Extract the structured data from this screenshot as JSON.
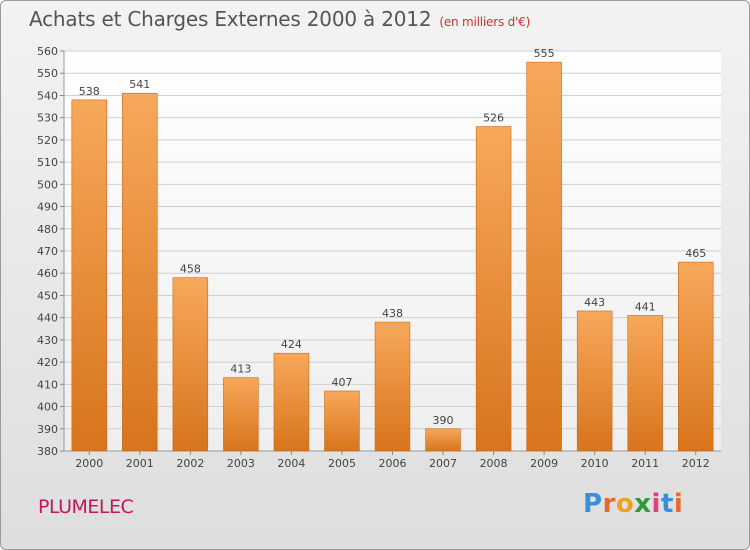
{
  "title": "Achats et Charges Externes 2000 à 2012",
  "unit": "(en milliers d'€)",
  "commune": "PLUMELEC",
  "logo": "Proxiti",
  "colors": {
    "bar_light": "#f7a85a",
    "bar_dark": "#d8741c",
    "commune": "#c2185b"
  },
  "chart_data": {
    "type": "bar",
    "title": "Achats et Charges Externes 2000 à 2012",
    "xlabel": "",
    "ylabel": "en milliers d'€",
    "categories": [
      "2000",
      "2001",
      "2002",
      "2003",
      "2004",
      "2005",
      "2006",
      "2007",
      "2008",
      "2009",
      "2010",
      "2011",
      "2012"
    ],
    "values": [
      538,
      541,
      458,
      413,
      424,
      407,
      438,
      390,
      526,
      555,
      443,
      441,
      465
    ],
    "ylim": [
      380,
      560
    ],
    "ytick_step": 10,
    "grid": true
  }
}
